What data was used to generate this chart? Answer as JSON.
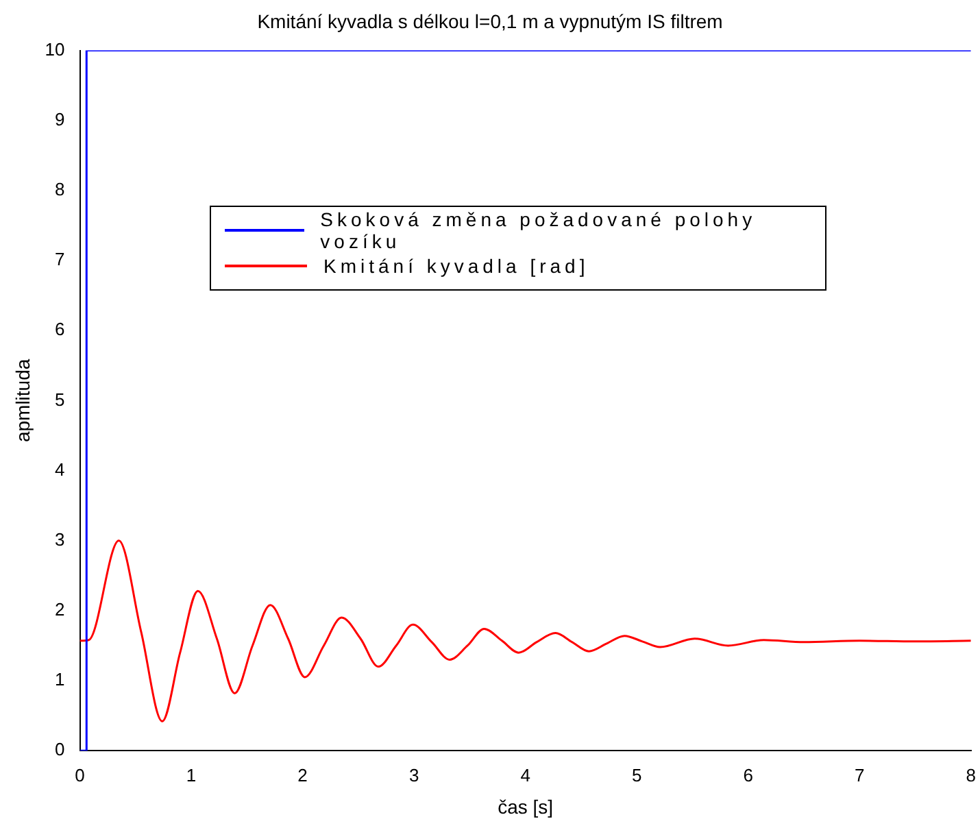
{
  "chart_data": {
    "type": "line",
    "title": "Kmitání kyvadla s délkou l=0,1 m a vypnutým IS filtrem",
    "xlabel": "čas [s]",
    "ylabel": "apmlituda",
    "xlim": [
      0,
      8
    ],
    "xticks": [
      0,
      1,
      2,
      3,
      4,
      5,
      6,
      7,
      8
    ],
    "ylim": [
      0,
      10
    ],
    "yticks": [
      0,
      1,
      2,
      3,
      4,
      5,
      6,
      7,
      8,
      9,
      10
    ],
    "grid": false,
    "legend": "top",
    "marker": "none",
    "line_style": "solid",
    "series": [
      {
        "name": "Skoková změna požadované polohy vozíku",
        "color": "#0000ff",
        "x": [
          0,
          0.06,
          0.06,
          8
        ],
        "values": [
          0,
          0,
          10,
          10
        ]
      },
      {
        "name": "Kmitání kyvadla [rad]",
        "color": "#ff0000",
        "x": [
          0,
          0.08,
          0.35,
          0.55,
          0.74,
          0.9,
          1.06,
          1.23,
          1.39,
          1.55,
          1.71,
          1.87,
          2.02,
          2.19,
          2.35,
          2.52,
          2.68,
          2.84,
          2.99,
          3.16,
          3.32,
          3.48,
          3.63,
          3.79,
          3.94,
          4.1,
          4.27,
          4.42,
          4.57,
          4.73,
          4.89,
          5.05,
          5.21,
          5.52,
          5.82,
          6.14,
          6.5,
          7,
          7.5,
          8
        ],
        "values": [
          1.57,
          1.58,
          3.0,
          1.7,
          0.42,
          1.4,
          2.28,
          1.6,
          0.82,
          1.5,
          2.08,
          1.6,
          1.05,
          1.5,
          1.9,
          1.6,
          1.2,
          1.5,
          1.8,
          1.55,
          1.3,
          1.5,
          1.74,
          1.57,
          1.4,
          1.55,
          1.68,
          1.55,
          1.42,
          1.53,
          1.64,
          1.56,
          1.48,
          1.6,
          1.5,
          1.58,
          1.55,
          1.57,
          1.56,
          1.57
        ]
      }
    ]
  }
}
